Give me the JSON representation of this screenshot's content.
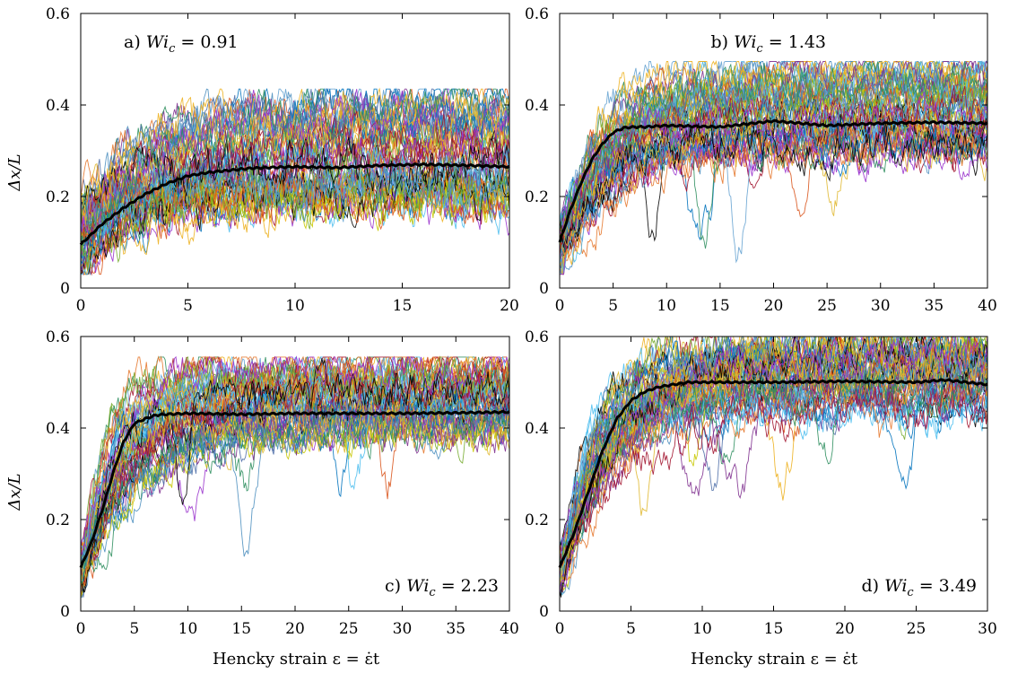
{
  "figure": {
    "ylabel": "Δx/L",
    "xlabel": "Hencky strain ε = ε̇t"
  },
  "palette": [
    "#0072bd",
    "#d95319",
    "#edb120",
    "#7e2f8e",
    "#77ac30",
    "#4dbeee",
    "#a2142f",
    "#000000",
    "#4d8fbf",
    "#e0b830",
    "#9932cc",
    "#2f8f5f",
    "#c8c800",
    "#4f6fa8",
    "#e6782d",
    "#66a3d2"
  ],
  "chart_data": [
    {
      "id": "a",
      "type": "line",
      "annotation": "a) Wi_c = 0.91",
      "annotation_pos": "top-left",
      "xlim": [
        0,
        20
      ],
      "ylim": [
        0,
        0.6
      ],
      "xticks": [
        0,
        5,
        10,
        15,
        20
      ],
      "yticks": [
        0,
        0.2,
        0.4,
        0.6
      ],
      "ytick_labels": [
        "0",
        "0.2",
        "0.4",
        "0.6"
      ],
      "mean_curve": {
        "x": [
          0,
          1,
          2,
          3,
          4,
          5,
          6,
          8,
          10,
          12,
          14,
          16,
          18,
          20
        ],
        "y": [
          0.095,
          0.14,
          0.175,
          0.205,
          0.228,
          0.245,
          0.253,
          0.262,
          0.265,
          0.263,
          0.268,
          0.27,
          0.268,
          0.265
        ]
      },
      "ensemble": {
        "n": 60,
        "y0_range": [
          0.04,
          0.2
        ],
        "band": [
          0.05,
          0.42
        ],
        "tau": 2.5,
        "noise": 0.04,
        "dips": false
      }
    },
    {
      "id": "b",
      "type": "line",
      "annotation": "b) Wi_c = 1.43",
      "annotation_pos": "top-center",
      "xlim": [
        0,
        40
      ],
      "ylim": [
        0,
        0.6
      ],
      "xticks": [
        0,
        5,
        10,
        15,
        20,
        25,
        30,
        35,
        40
      ],
      "yticks": [
        0,
        0.2,
        0.4,
        0.6
      ],
      "ytick_labels": [
        "0",
        "0.2",
        "0.4",
        "0.6"
      ],
      "mean_curve": {
        "x": [
          0,
          1,
          2,
          3,
          4,
          5,
          6,
          7,
          8,
          10,
          15,
          20,
          25,
          30,
          35,
          40
        ],
        "y": [
          0.1,
          0.17,
          0.23,
          0.28,
          0.315,
          0.34,
          0.35,
          0.352,
          0.352,
          0.355,
          0.352,
          0.365,
          0.355,
          0.36,
          0.362,
          0.36
        ]
      },
      "ensemble": {
        "n": 60,
        "y0_range": [
          0.04,
          0.14
        ],
        "band": [
          0.2,
          0.48
        ],
        "tau": 3.5,
        "noise": 0.035,
        "dips": true
      }
    },
    {
      "id": "c",
      "type": "line",
      "annotation": "c) Wi_c = 2.23",
      "annotation_pos": "bottom-right",
      "xlim": [
        0,
        40
      ],
      "ylim": [
        0,
        0.6
      ],
      "xticks": [
        0,
        5,
        10,
        15,
        20,
        25,
        30,
        35,
        40
      ],
      "yticks": [
        0,
        0.2,
        0.4,
        0.6
      ],
      "ytick_labels": [
        "0",
        "0.2",
        "0.4",
        "0.6"
      ],
      "mean_curve": {
        "x": [
          0,
          1,
          2,
          3,
          4,
          5,
          6,
          7,
          8,
          10,
          15,
          20,
          25,
          30,
          35,
          40
        ],
        "y": [
          0.095,
          0.15,
          0.22,
          0.3,
          0.37,
          0.41,
          0.42,
          0.428,
          0.43,
          0.432,
          0.43,
          0.432,
          0.432,
          0.432,
          0.433,
          0.435
        ]
      },
      "ensemble": {
        "n": 60,
        "y0_range": [
          0.04,
          0.14
        ],
        "band": [
          0.3,
          0.54
        ],
        "tau": 3.0,
        "noise": 0.035,
        "dips": true
      }
    },
    {
      "id": "d",
      "type": "line",
      "annotation": "d) Wi_c = 3.49",
      "annotation_pos": "bottom-right",
      "xlim": [
        0,
        30
      ],
      "ylim": [
        0,
        0.6
      ],
      "xticks": [
        0,
        5,
        10,
        15,
        20,
        25,
        30
      ],
      "yticks": [
        0,
        0.2,
        0.4,
        0.6
      ],
      "ytick_labels": [
        "0",
        "0.2",
        "0.4",
        "0.6"
      ],
      "mean_curve": {
        "x": [
          0,
          1,
          2,
          3,
          4,
          5,
          6,
          7,
          8,
          9,
          10,
          15,
          20,
          25,
          27,
          30
        ],
        "y": [
          0.095,
          0.17,
          0.26,
          0.35,
          0.42,
          0.46,
          0.48,
          0.49,
          0.495,
          0.5,
          0.5,
          0.5,
          0.502,
          0.5,
          0.505,
          0.495
        ]
      },
      "ensemble": {
        "n": 60,
        "y0_range": [
          0.04,
          0.14
        ],
        "band": [
          0.35,
          0.59
        ],
        "tau": 2.2,
        "noise": 0.035,
        "dips": true
      }
    }
  ]
}
